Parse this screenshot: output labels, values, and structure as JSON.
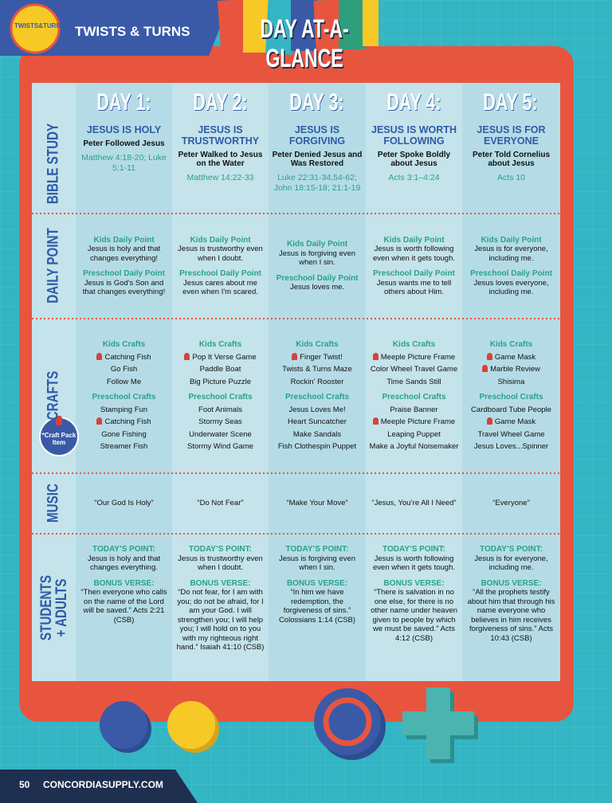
{
  "header": {
    "logo": "TWISTS&TURNS",
    "brand": "TWISTS & TURNS",
    "title": "DAY AT-A-GLANCE"
  },
  "table": {
    "days": [
      "DAY 1:",
      "DAY 2:",
      "DAY 3:",
      "DAY 4:",
      "DAY 5:"
    ],
    "rows": {
      "bible_study": {
        "label": "BIBLE STUDY",
        "cells": [
          {
            "theme": "JESUS IS HOLY",
            "story": "Peter Followed Jesus",
            "reference": "Matthew 4:18-20; Luke 5:1-11"
          },
          {
            "theme": "JESUS IS TRUSTWORTHY",
            "story": "Peter Walked to Jesus on the Water",
            "reference": "Matthew 14:22-33"
          },
          {
            "theme": "JESUS IS FORGIVING",
            "story": "Peter Denied Jesus and Was Restored",
            "reference": "Luke 22:31-34,54-62; John 18:15-18; 21:1-19"
          },
          {
            "theme": "JESUS IS WORTH FOLLOWING",
            "story": "Peter Spoke Boldly about Jesus",
            "reference": "Acts 3:1–4:24"
          },
          {
            "theme": "JESUS IS FOR EVERYONE",
            "story": "Peter Told Cornelius about Jesus",
            "reference": "Acts 10"
          }
        ]
      },
      "daily_point": {
        "label": "DAILY POINT",
        "cells": [
          {
            "kids_heading": "Kids Daily Point",
            "kids": "Jesus is holy and that changes everything!",
            "preschool_heading": "Preschool Daily Point",
            "preschool": "Jesus is God's Son and that changes everything!"
          },
          {
            "kids_heading": "Kids Daily Point",
            "kids": "Jesus is trustworthy even when I doubt.",
            "preschool_heading": "Preschool Daily Point",
            "preschool": "Jesus cares about me even when I'm scared."
          },
          {
            "kids_heading": "Kids Daily Point",
            "kids": "Jesus is forgiving even when I sin.",
            "preschool_heading": "Preschool Daily Point",
            "preschool": "Jesus loves me."
          },
          {
            "kids_heading": "Kids Daily Point",
            "kids": "Jesus is worth following even when it gets tough.",
            "preschool_heading": "Preschool Daily Point",
            "preschool": "Jesus wants me to tell others about Him."
          },
          {
            "kids_heading": "Kids Daily Point",
            "kids": "Jesus is for everyone, including me.",
            "preschool_heading": "Preschool Daily Point",
            "preschool": "Jesus loves everyone, including me."
          }
        ]
      },
      "crafts": {
        "label": "CRAFTS",
        "note": "*Craft Pack Item",
        "cells": [
          {
            "kids_heading": "Kids Crafts",
            "kids": [
              {
                "text": "Catching Fish",
                "pack": true
              },
              {
                "text": "Go Fish",
                "pack": false
              },
              {
                "text": "Follow Me",
                "pack": false
              }
            ],
            "preschool_heading": "Preschool Crafts",
            "preschool": [
              {
                "text": "Stamping Fun",
                "pack": false
              },
              {
                "text": "Catching Fish",
                "pack": true
              },
              {
                "text": "Gone Fishing",
                "pack": false
              },
              {
                "text": "Streamer Fish",
                "pack": false
              }
            ]
          },
          {
            "kids_heading": "Kids Crafts",
            "kids": [
              {
                "text": "Pop It Verse Game",
                "pack": true
              },
              {
                "text": "Paddle Boat",
                "pack": false
              },
              {
                "text": "Big Picture Puzzle",
                "pack": false
              }
            ],
            "preschool_heading": "Preschool Crafts",
            "preschool": [
              {
                "text": "Foot Animals",
                "pack": false
              },
              {
                "text": "Stormy Seas",
                "pack": false
              },
              {
                "text": "Underwater Scene",
                "pack": false
              },
              {
                "text": "Stormy Wind Game",
                "pack": false
              }
            ]
          },
          {
            "kids_heading": "Kids Crafts",
            "kids": [
              {
                "text": "Finger Twist!",
                "pack": true
              },
              {
                "text": "Twists & Turns Maze",
                "pack": false
              },
              {
                "text": "Rockin' Rooster",
                "pack": false
              }
            ],
            "preschool_heading": "Preschool Crafts",
            "preschool": [
              {
                "text": "Jesus Loves Me!",
                "pack": false
              },
              {
                "text": "Heart Suncatcher",
                "pack": false
              },
              {
                "text": "Make Sandals",
                "pack": false
              },
              {
                "text": "Fish Clothespin Puppet",
                "pack": false
              }
            ]
          },
          {
            "kids_heading": "Kids Crafts",
            "kids": [
              {
                "text": "Meeple Picture Frame",
                "pack": true
              },
              {
                "text": "Color Wheel Travel Game",
                "pack": false
              },
              {
                "text": "Time Sands Still",
                "pack": false
              }
            ],
            "preschool_heading": "Preschool Crafts",
            "preschool": [
              {
                "text": "Praise Banner",
                "pack": false
              },
              {
                "text": "Meeple Picture Frame",
                "pack": true
              },
              {
                "text": "Leaping Puppet",
                "pack": false
              },
              {
                "text": "Make a Joyful Noisemaker",
                "pack": false
              }
            ]
          },
          {
            "kids_heading": "Kids Crafts",
            "kids": [
              {
                "text": "Game Mask",
                "pack": true
              },
              {
                "text": "Marble Review",
                "pack": true
              },
              {
                "text": "Shisima",
                "pack": false
              }
            ],
            "preschool_heading": "Preschool Crafts",
            "preschool": [
              {
                "text": "Cardboard Tube People",
                "pack": false
              },
              {
                "text": "Game Mask",
                "pack": true
              },
              {
                "text": "Travel Wheel Game",
                "pack": false
              },
              {
                "text": "Jesus Loves...Spinner",
                "pack": false
              }
            ]
          }
        ]
      },
      "music": {
        "label": "MUSIC",
        "cells": [
          "“Our God Is Holy”",
          "“Do Not Fear”",
          "“Make Your Move”",
          "“Jesus, You’re All I Need”",
          "“Everyone”"
        ]
      },
      "students_adults": {
        "label": "STUDENTS + ADULTS",
        "cells": [
          {
            "point_heading": "TODAY’S POINT:",
            "point": "Jesus is holy and that changes everything.",
            "verse_heading": "BONUS VERSE:",
            "verse": "“Then everyone who calls on the name of the Lord will be saved.” Acts 2:21 (CSB)"
          },
          {
            "point_heading": "TODAY’S POINT:",
            "point": "Jesus is trustworthy even when I doubt.",
            "verse_heading": "BONUS VERSE:",
            "verse": "“Do not fear, for I am with you; do not be afraid, for I am your God. I will strengthen you; I will help you; I will hold on to you with my righteous right hand.” Isaiah 41:10 (CSB)"
          },
          {
            "point_heading": "TODAY’S POINT:",
            "point": "Jesus is forgiving even when I sin.",
            "verse_heading": "BONUS VERSE:",
            "verse": "“In him we have redemption, the forgiveness of sins.” Colossians 1:14 (CSB)"
          },
          {
            "point_heading": "TODAY’S POINT:",
            "point": "Jesus is worth following even when it gets tough.",
            "verse_heading": "BONUS VERSE:",
            "verse": "“There is salvation in no one else, for there is no other name under heaven given to people by which we must be saved.” Acts 4:12 (CSB)"
          },
          {
            "point_heading": "TODAY’S POINT:",
            "point": "Jesus is for everyone, including me.",
            "verse_heading": "BONUS VERSE:",
            "verse": "“All the prophets testify about him that through his name everyone who believes in him receives forgiveness of sins.” Acts 10:43 (CSB)"
          }
        ]
      }
    }
  },
  "footer": {
    "page": "50",
    "site": "CONCORDIASUPPLY.COM"
  }
}
